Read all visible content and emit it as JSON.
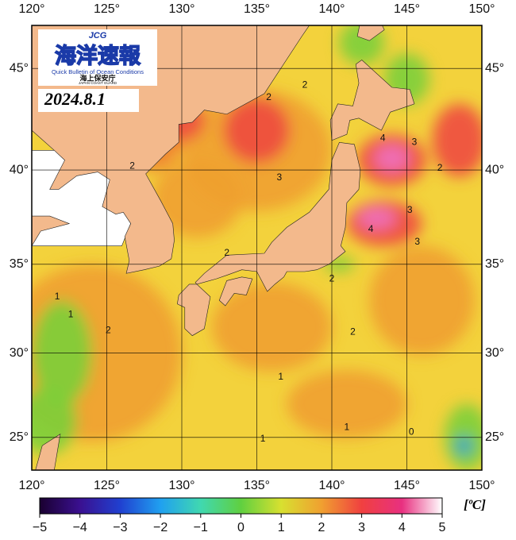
{
  "logo": {
    "badge": "JCG",
    "title": "海洋速報",
    "subtitle": "Quick Bulletin of Ocean Conditions",
    "agency": "海上保安庁",
    "agency_en": "JAPAN COAST GUARD"
  },
  "date": "2024.8.1",
  "chart_data": {
    "type": "map",
    "xlim": [
      120,
      150
    ],
    "ylim": [
      23,
      47
    ],
    "xticks": [
      {
        "value": 120,
        "label": "120°"
      },
      {
        "value": 125,
        "label": "125°"
      },
      {
        "value": 130,
        "label": "130°"
      },
      {
        "value": 135,
        "label": "135°"
      },
      {
        "value": 140,
        "label": "140°"
      },
      {
        "value": 145,
        "label": "145°"
      },
      {
        "value": 150,
        "label": "150°"
      }
    ],
    "yticks": [
      {
        "value": 25,
        "label": "25°"
      },
      {
        "value": 30,
        "label": "30°"
      },
      {
        "value": 35,
        "label": "35°"
      },
      {
        "value": 40,
        "label": "40°"
      },
      {
        "value": 45,
        "label": "45°"
      }
    ],
    "grid": true,
    "contour_labels": [
      "2",
      "2",
      "3",
      "4",
      "3",
      "2",
      "3",
      "2",
      "4",
      "3",
      "1",
      "2",
      "1",
      "2",
      "2",
      "2",
      "1",
      "1",
      "1",
      "0"
    ],
    "colorbar": {
      "range": [
        -5,
        5
      ],
      "unit": "[ºC]",
      "ticks": [
        {
          "value": -5,
          "label": "−5"
        },
        {
          "value": -4,
          "label": "−4"
        },
        {
          "value": -3,
          "label": "−3"
        },
        {
          "value": -2,
          "label": "−2"
        },
        {
          "value": -1,
          "label": "−1"
        },
        0,
        1,
        2,
        3,
        4,
        5
      ]
    }
  }
}
